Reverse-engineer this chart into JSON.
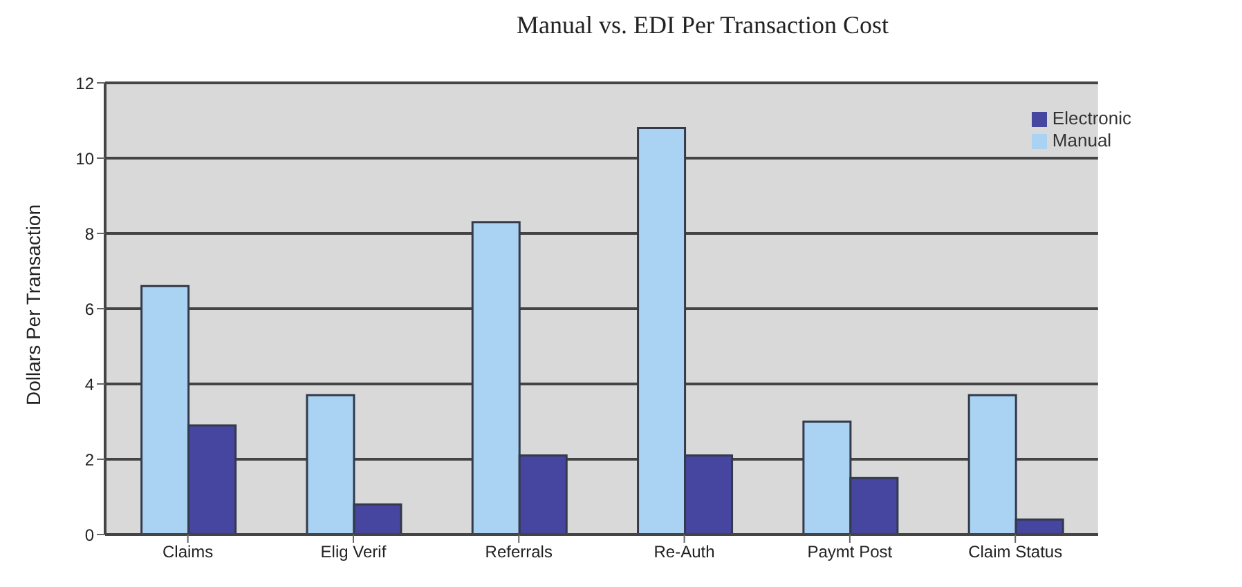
{
  "chart_data": {
    "type": "bar",
    "title": "Manual vs. EDI Per Transaction Cost",
    "ylabel": "Dollars Per Transaction",
    "categories": [
      "Claims",
      "Elig Verif",
      "Referrals",
      "Re-Auth",
      "Paymt Post",
      "Claim Status"
    ],
    "series": [
      {
        "name": "Manual",
        "color": "#aad2f2",
        "values": [
          6.6,
          3.7,
          8.3,
          10.8,
          3.0,
          3.7
        ]
      },
      {
        "name": "Electronic",
        "color": "#4646a0",
        "values": [
          2.9,
          0.8,
          2.1,
          2.1,
          1.5,
          0.4
        ]
      }
    ],
    "ylim": [
      0,
      12
    ],
    "yticks": [
      0,
      2,
      4,
      6,
      8,
      10,
      12
    ],
    "grid": "y",
    "legend": "top right"
  }
}
